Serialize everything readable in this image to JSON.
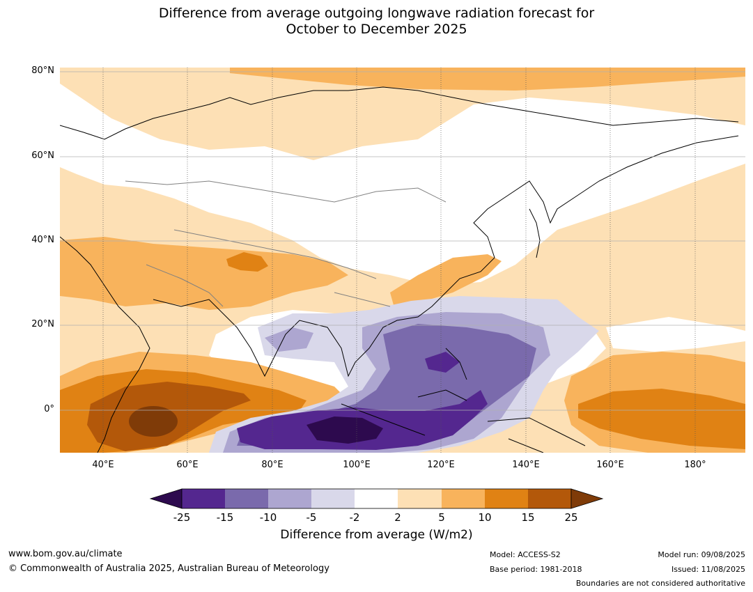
{
  "title": {
    "line1": "Difference from average outgoing longwave radiation forecast for",
    "line2": "October to December 2025"
  },
  "map": {
    "lat_labels": [
      "80°N",
      "60°N",
      "40°N",
      "20°N",
      "0°"
    ],
    "lon_labels": [
      "40°E",
      "60°E",
      "80°E",
      "100°E",
      "120°E",
      "140°E",
      "160°E",
      "180°"
    ]
  },
  "colorbar": {
    "ticks": [
      "-25",
      "-15",
      "-10",
      "-5",
      "-2",
      "2",
      "5",
      "10",
      "15",
      "25"
    ],
    "label": "Difference from average (W/m2)",
    "colors": [
      "#2d0a4e",
      "#54278f",
      "#7a6aac",
      "#ada6d0",
      "#d9d8ea",
      "#ffffff",
      "#fde0b5",
      "#f8b35c",
      "#e08214",
      "#b3580a",
      "#7f3b08"
    ]
  },
  "footer": {
    "url": "www.bom.gov.au/climate",
    "copyright": "© Commonwealth of Australia 2025, Australian Bureau of Meteorology",
    "model": "Model: ACCESS-S2",
    "base_period": "Base period: 1981-2018",
    "model_run": "Model run: 09/08/2025",
    "issued": "Issued: 11/08/2025",
    "disclaimer": "Boundaries are not considered authoritative"
  }
}
